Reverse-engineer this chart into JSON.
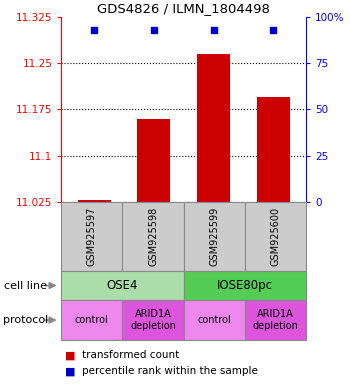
{
  "title": "GDS4826 / ILMN_1804498",
  "samples": [
    "GSM925597",
    "GSM925598",
    "GSM925599",
    "GSM925600"
  ],
  "bar_values": [
    11.027,
    11.16,
    11.265,
    11.195
  ],
  "bar_base": 11.025,
  "percentile_values": [
    93,
    93,
    93,
    93
  ],
  "ylim": [
    11.025,
    11.325
  ],
  "yticks": [
    11.025,
    11.1,
    11.175,
    11.25,
    11.325
  ],
  "ytick_labels": [
    "11.025",
    "11.1",
    "11.175",
    "11.25",
    "11.325"
  ],
  "y2lim": [
    0,
    100
  ],
  "y2ticks": [
    0,
    25,
    50,
    75,
    100
  ],
  "y2tick_labels": [
    "0",
    "25",
    "50",
    "75",
    "100%"
  ],
  "bar_color": "#cc0000",
  "dot_color": "#0000cc",
  "cell_line_groups": [
    {
      "label": "OSE4",
      "color": "#aaddaa",
      "span": [
        0,
        2
      ]
    },
    {
      "label": "IOSE80pc",
      "color": "#55cc55",
      "span": [
        2,
        4
      ]
    }
  ],
  "protocol_groups": [
    {
      "label": "control",
      "color": "#ee88ee",
      "span": [
        0,
        1
      ]
    },
    {
      "label": "ARID1A\ndepletion",
      "color": "#dd55dd",
      "span": [
        1,
        2
      ]
    },
    {
      "label": "control",
      "color": "#ee88ee",
      "span": [
        2,
        3
      ]
    },
    {
      "label": "ARID1A\ndepletion",
      "color": "#dd55dd",
      "span": [
        3,
        4
      ]
    }
  ],
  "legend_red_label": "transformed count",
  "legend_blue_label": "percentile rank within the sample",
  "cell_line_label": "cell line",
  "protocol_label": "protocol",
  "sample_box_color": "#cccccc",
  "sample_box_edge": "#888888"
}
